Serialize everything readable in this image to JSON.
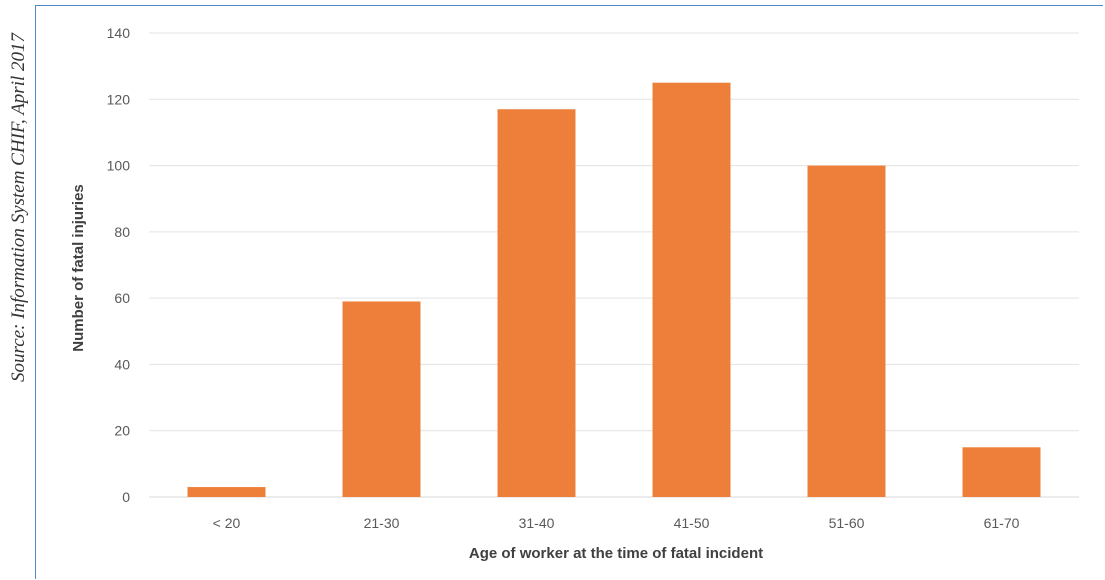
{
  "source_note": "Source: Information System CHIF, April 2017",
  "colors": {
    "bar": "#ee7f3b",
    "bar_light": "#f08a4a",
    "frame": "#4d88c7",
    "grid": "#e3e3e3"
  },
  "chart_data": {
    "type": "bar",
    "title": "",
    "xlabel": "Age of worker at the time of fatal incident",
    "ylabel": "Number of fatal injuries",
    "categories": [
      "< 20",
      "21-30",
      "31-40",
      "41-50",
      "51-60",
      "61-70"
    ],
    "values": [
      3,
      59,
      117,
      125,
      100,
      15
    ],
    "ylim": [
      0,
      140
    ],
    "yticks": [
      0,
      20,
      40,
      60,
      80,
      100,
      120,
      140
    ],
    "grid": true,
    "legend": false
  }
}
